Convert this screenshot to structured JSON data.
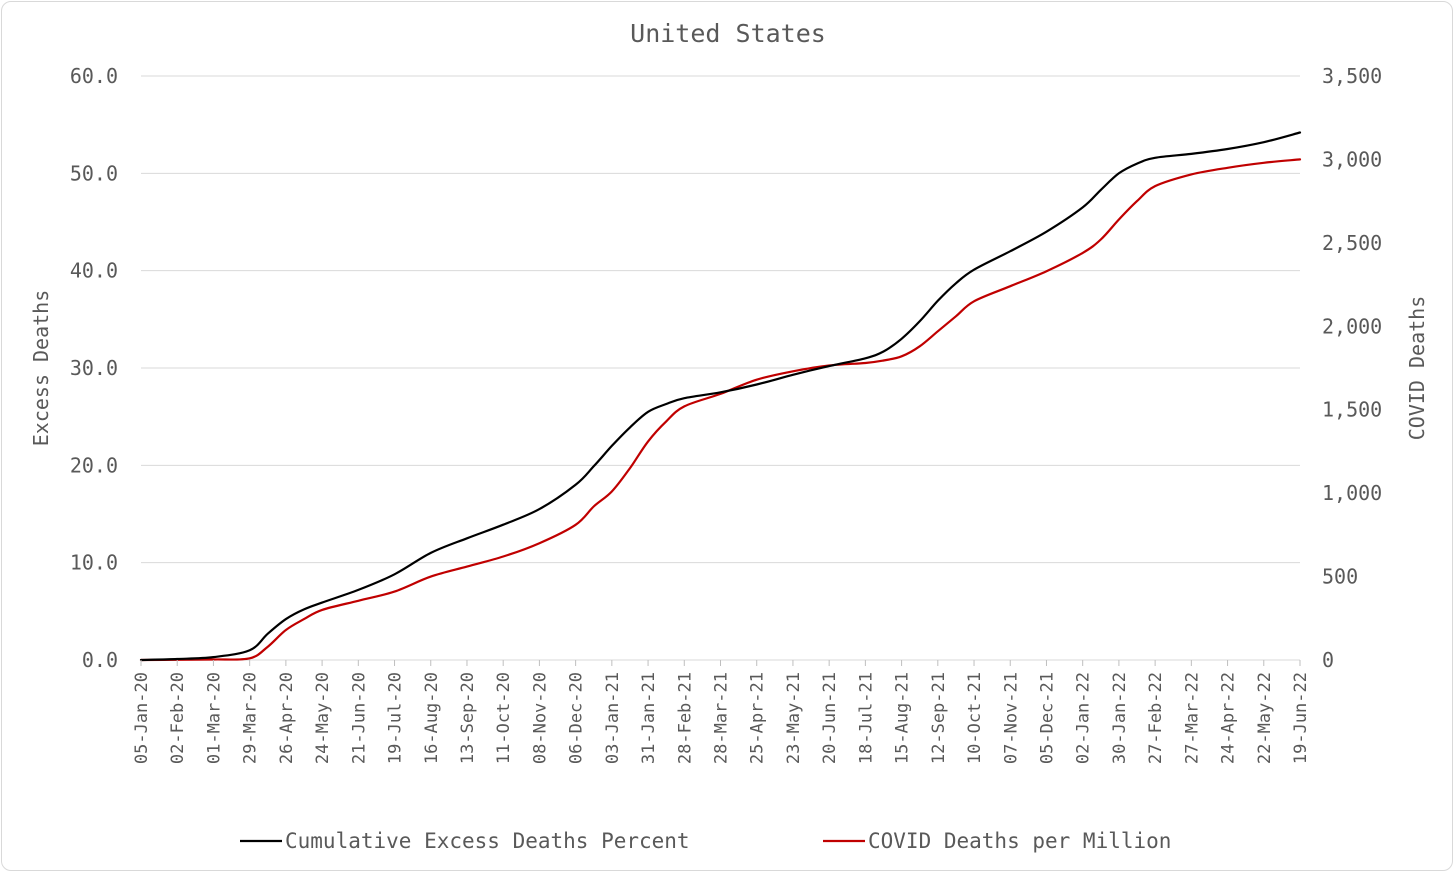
{
  "chart_data": {
    "type": "line",
    "title": "United States",
    "ylabel": "Excess Deaths",
    "y2label": "COVID Deaths",
    "ylim": [
      0,
      60
    ],
    "y2lim": [
      0,
      3500
    ],
    "yticks": [
      "0.0",
      "10.0",
      "20.0",
      "30.0",
      "40.0",
      "50.0",
      "60.0"
    ],
    "y2ticks": [
      "0",
      "500",
      "1,000",
      "1,500",
      "2,000",
      "2,500",
      "3,000",
      "3,500"
    ],
    "grid": true,
    "legend_position": "bottom",
    "x_tick_labels": [
      "05-Jan-20",
      "02-Feb-20",
      "01-Mar-20",
      "29-Mar-20",
      "26-Apr-20",
      "24-May-20",
      "21-Jun-20",
      "19-Jul-20",
      "16-Aug-20",
      "13-Sep-20",
      "11-Oct-20",
      "08-Nov-20",
      "06-Dec-20",
      "03-Jan-21",
      "31-Jan-21",
      "28-Feb-21",
      "28-Mar-21",
      "25-Apr-21",
      "23-May-21",
      "20-Jun-21",
      "18-Jul-21",
      "15-Aug-21",
      "12-Sep-21",
      "10-Oct-21",
      "07-Nov-21",
      "05-Dec-21",
      "02-Jan-22",
      "30-Jan-22",
      "27-Feb-22",
      "27-Mar-22",
      "24-Apr-22",
      "22-May-22",
      "19-Jun-22"
    ],
    "series": [
      {
        "name": "Cumulative Excess Deaths Percent",
        "axis": "left",
        "color": "#000000",
        "x": [
          "05-Jan-20",
          "02-Feb-20",
          "01-Mar-20",
          "29-Mar-20",
          "12-Apr-20",
          "26-Apr-20",
          "10-May-20",
          "24-May-20",
          "21-Jun-20",
          "19-Jul-20",
          "16-Aug-20",
          "13-Sep-20",
          "11-Oct-20",
          "08-Nov-20",
          "06-Dec-20",
          "20-Dec-20",
          "03-Jan-21",
          "17-Jan-21",
          "31-Jan-21",
          "14-Feb-21",
          "28-Feb-21",
          "28-Mar-21",
          "25-Apr-21",
          "23-May-21",
          "20-Jun-21",
          "18-Jul-21",
          "01-Aug-21",
          "15-Aug-21",
          "29-Aug-21",
          "12-Sep-21",
          "26-Sep-21",
          "10-Oct-21",
          "07-Nov-21",
          "05-Dec-21",
          "02-Jan-22",
          "16-Jan-22",
          "30-Jan-22",
          "13-Feb-22",
          "27-Feb-22",
          "27-Mar-22",
          "24-Apr-22",
          "22-May-22",
          "19-Jun-22"
        ],
        "values": [
          0.0,
          0.1,
          0.3,
          1.0,
          2.7,
          4.2,
          5.2,
          5.9,
          7.2,
          8.8,
          11.0,
          12.5,
          13.9,
          15.5,
          18.0,
          19.9,
          22.0,
          23.9,
          25.5,
          26.3,
          26.9,
          27.5,
          28.3,
          29.3,
          30.2,
          31.0,
          31.7,
          33.0,
          34.8,
          36.9,
          38.7,
          40.1,
          42.0,
          44.0,
          46.5,
          48.3,
          50.0,
          51.0,
          51.6,
          52.0,
          52.5,
          53.2,
          54.2
        ]
      },
      {
        "name": "COVID Deaths per Million",
        "axis": "right",
        "color": "#c00000",
        "x": [
          "05-Jan-20",
          "02-Feb-20",
          "01-Mar-20",
          "29-Mar-20",
          "12-Apr-20",
          "26-Apr-20",
          "10-May-20",
          "24-May-20",
          "21-Jun-20",
          "19-Jul-20",
          "16-Aug-20",
          "13-Sep-20",
          "11-Oct-20",
          "08-Nov-20",
          "06-Dec-20",
          "20-Dec-20",
          "03-Jan-21",
          "17-Jan-21",
          "31-Jan-21",
          "14-Feb-21",
          "28-Feb-21",
          "28-Mar-21",
          "25-Apr-21",
          "23-May-21",
          "20-Jun-21",
          "18-Jul-21",
          "01-Aug-21",
          "15-Aug-21",
          "29-Aug-21",
          "12-Sep-21",
          "26-Sep-21",
          "10-Oct-21",
          "07-Nov-21",
          "05-Dec-21",
          "02-Jan-22",
          "16-Jan-22",
          "30-Jan-22",
          "13-Feb-22",
          "27-Feb-22",
          "27-Mar-22",
          "24-Apr-22",
          "22-May-22",
          "19-Jun-22"
        ],
        "values": [
          0,
          1,
          3,
          10,
          80,
          180,
          245,
          300,
          355,
          410,
          500,
          560,
          620,
          700,
          810,
          920,
          1010,
          1150,
          1310,
          1430,
          1520,
          1595,
          1680,
          1730,
          1765,
          1780,
          1795,
          1820,
          1880,
          1970,
          2060,
          2150,
          2240,
          2330,
          2440,
          2520,
          2640,
          2750,
          2840,
          2910,
          2950,
          2980,
          3000
        ]
      }
    ]
  }
}
